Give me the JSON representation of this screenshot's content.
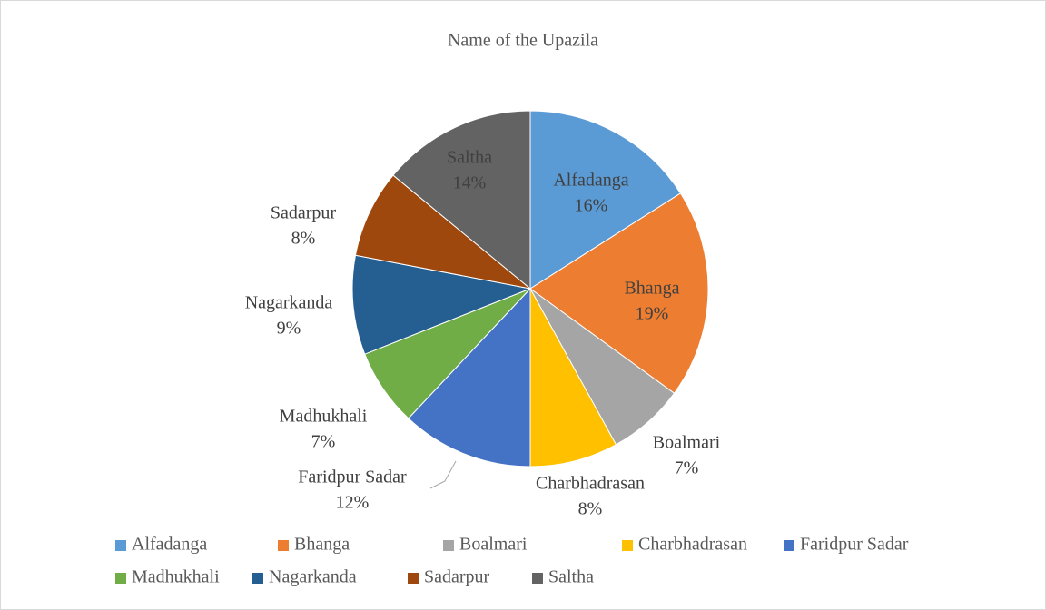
{
  "chart_data": {
    "type": "pie",
    "title": "Name of the Upazila",
    "categories": [
      "Alfadanga",
      "Bhanga",
      "Boalmari",
      "Charbhadrasan",
      "Faridpur Sadar",
      "Madhukhali",
      "Nagarkanda",
      "Sadarpur",
      "Saltha"
    ],
    "values": [
      16,
      19,
      7,
      8,
      12,
      7,
      9,
      8,
      14
    ],
    "value_labels": [
      "16%",
      "19%",
      "7%",
      "8%",
      "12%",
      "7%",
      "9%",
      "8%",
      "14%"
    ],
    "colors": [
      "#5b9bd5",
      "#ed7d31",
      "#a5a5a5",
      "#ffc000",
      "#4472c4",
      "#70ad47",
      "#255e91",
      "#9e480e",
      "#636363"
    ],
    "legend": "bottom"
  }
}
